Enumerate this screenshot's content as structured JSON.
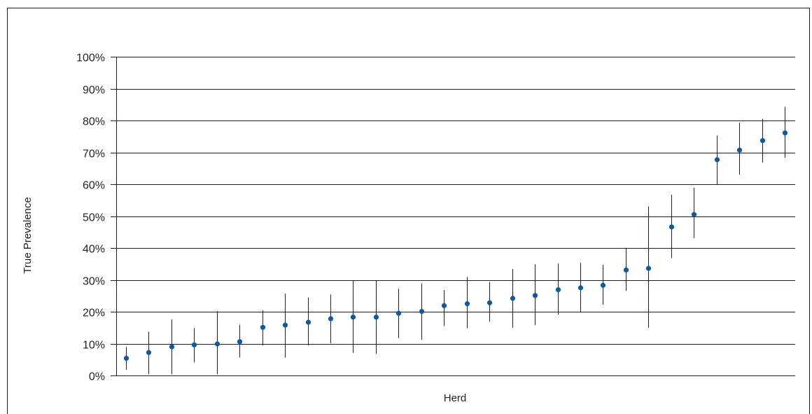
{
  "chart_data": {
    "type": "scatter",
    "title": "",
    "xlabel": "Herd",
    "ylabel": "True Prevalence",
    "ylim": [
      0,
      100
    ],
    "y_ticks": [
      "0%",
      "10%",
      "20%",
      "30%",
      "40%",
      "50%",
      "60%",
      "70%",
      "80%",
      "90%",
      "100%"
    ],
    "grid": true,
    "legend": "none",
    "marker_color": "#0b5aa6",
    "error_bar_color": "#231f20",
    "grid_color": "#231f20",
    "x": [
      1,
      2,
      3,
      4,
      5,
      6,
      7,
      8,
      9,
      10,
      11,
      12,
      13,
      14,
      15,
      16,
      17,
      18,
      19,
      20,
      21,
      22,
      23,
      24,
      25,
      26,
      27,
      28,
      29,
      30
    ],
    "series": [
      {
        "values": [
          5.4,
          7.2,
          9.0,
          9.6,
          9.9,
          10.6,
          15.1,
          15.8,
          16.7,
          17.8,
          18.3,
          18.3,
          19.5,
          20.1,
          21.9,
          22.5,
          22.8,
          24.2,
          25.1,
          26.9,
          27.5,
          28.3,
          33.1,
          33.6,
          46.6,
          50.5,
          67.7,
          70.7,
          73.7,
          76.1
        ],
        "lower": [
          1.8,
          0.4,
          0.4,
          4.1,
          0.4,
          5.7,
          9.4,
          5.6,
          9.4,
          10.1,
          7.1,
          6.8,
          11.7,
          11.2,
          15.5,
          14.8,
          16.9,
          15.0,
          15.8,
          19.1,
          20.0,
          22.2,
          26.5,
          15.0,
          36.8,
          43.1,
          60.0,
          63.0,
          66.8,
          68.3
        ],
        "upper": [
          8.9,
          13.7,
          17.6,
          14.9,
          20.2,
          15.9,
          20.5,
          25.7,
          24.5,
          25.4,
          29.9,
          29.9,
          27.2,
          28.9,
          26.8,
          30.9,
          29.3,
          33.4,
          34.9,
          35.1,
          35.3,
          34.7,
          40.0,
          53.0,
          56.7,
          58.9,
          75.3,
          79.3,
          80.5,
          84.3
        ]
      }
    ]
  }
}
